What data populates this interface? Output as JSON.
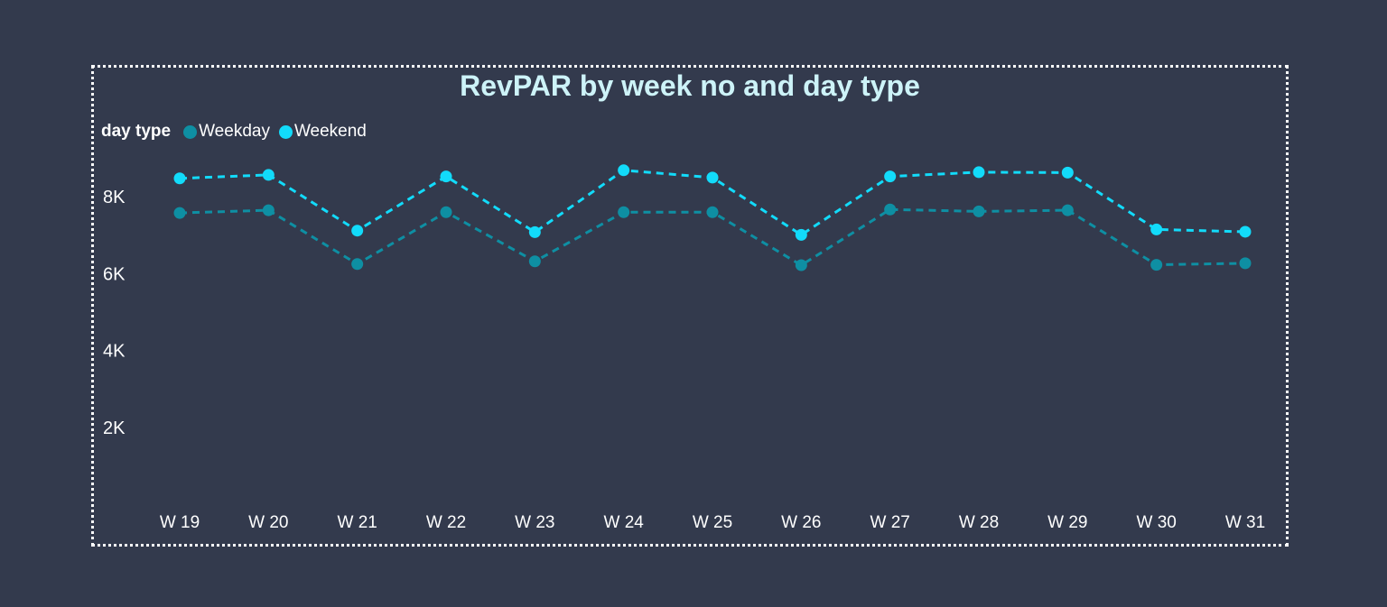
{
  "chart_data": {
    "type": "line",
    "title": "RevPAR by week no and day type",
    "legend_title": "day type",
    "categories": [
      "W 19",
      "W 20",
      "W 21",
      "W 22",
      "W 23",
      "W 24",
      "W 25",
      "W 26",
      "W 27",
      "W 28",
      "W 29",
      "W 30",
      "W 31"
    ],
    "series": [
      {
        "name": "Weekday",
        "color": "#0e8fa3",
        "values": [
          7580,
          7650,
          6250,
          7600,
          6320,
          7600,
          7600,
          6220,
          7670,
          7620,
          7650,
          6230,
          6270
        ]
      },
      {
        "name": "Weekend",
        "color": "#12dbfa",
        "values": [
          8480,
          8570,
          7120,
          8530,
          7080,
          8690,
          8500,
          7010,
          8530,
          8640,
          8630,
          7150,
          7090
        ]
      }
    ],
    "yticks": [
      2000,
      4000,
      6000,
      8000
    ],
    "ytick_labels": [
      "2K",
      "4K",
      "6K",
      "8K"
    ],
    "ylim": [
      0,
      10000
    ],
    "line_style": "dashed",
    "grid": false,
    "legend_position": "top-left"
  }
}
